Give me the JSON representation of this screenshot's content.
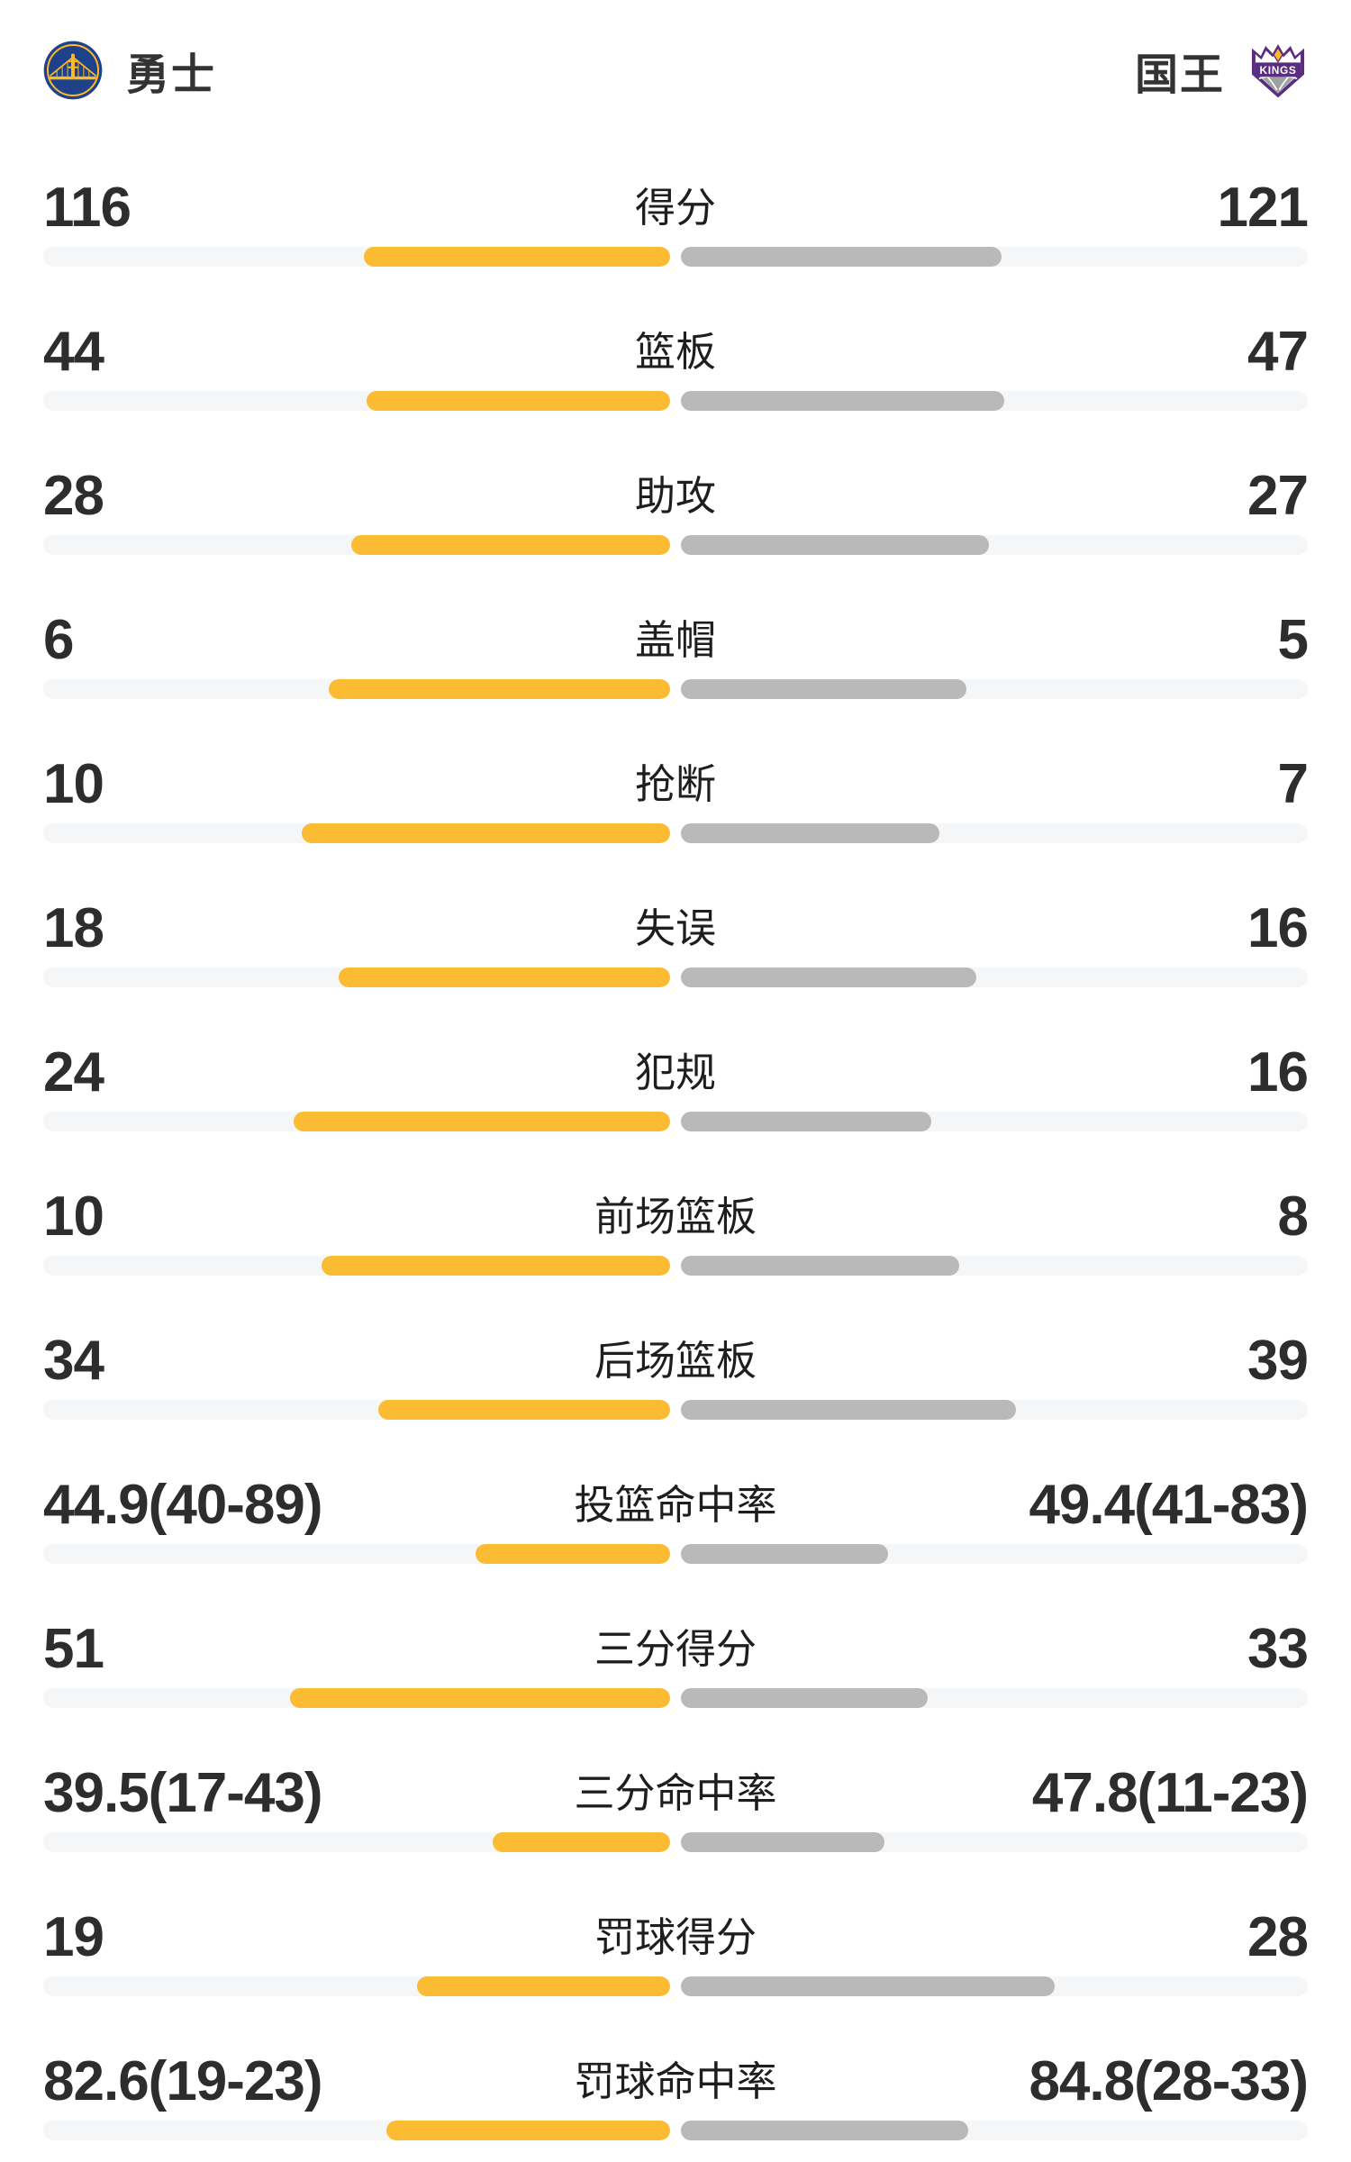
{
  "header": {
    "home": {
      "name": "勇士",
      "logo_icon": "warriors-logo"
    },
    "away": {
      "name": "国王",
      "logo_icon": "kings-logo"
    }
  },
  "colors": {
    "home_bar": "#FBBC34",
    "away_bar": "#B9B9B9",
    "track": "#F5F6F8",
    "number_text": "#2D2D2D",
    "label_text": "#1E1E1E",
    "warriors_blue": "#1D428A",
    "warriors_gold": "#FDB927",
    "kings_purple": "#5A2D81",
    "kings_silver": "#9EA2A2"
  },
  "rows": [
    {
      "label": "得分",
      "home": "116",
      "away": "121",
      "home_bar_pct": 48.9,
      "away_bar_pct": 51.1
    },
    {
      "label": "篮板",
      "home": "44",
      "away": "47",
      "home_bar_pct": 48.4,
      "away_bar_pct": 51.6
    },
    {
      "label": "助攻",
      "home": "28",
      "away": "27",
      "home_bar_pct": 50.9,
      "away_bar_pct": 49.1
    },
    {
      "label": "盖帽",
      "home": "6",
      "away": "5",
      "home_bar_pct": 54.5,
      "away_bar_pct": 45.5
    },
    {
      "label": "抢断",
      "home": "10",
      "away": "7",
      "home_bar_pct": 58.8,
      "away_bar_pct": 41.2
    },
    {
      "label": "失误",
      "home": "18",
      "away": "16",
      "home_bar_pct": 52.9,
      "away_bar_pct": 47.1
    },
    {
      "label": "犯规",
      "home": "24",
      "away": "16",
      "home_bar_pct": 60.0,
      "away_bar_pct": 40.0
    },
    {
      "label": "前场篮板",
      "home": "10",
      "away": "8",
      "home_bar_pct": 55.6,
      "away_bar_pct": 44.4
    },
    {
      "label": "后场篮板",
      "home": "34",
      "away": "39",
      "home_bar_pct": 46.6,
      "away_bar_pct": 53.4
    },
    {
      "label": "投篮命中率",
      "home": "44.9(40-89)",
      "away": "49.4(41-83)",
      "home_bar_pct": 31.0,
      "away_bar_pct": 33.1
    },
    {
      "label": "三分得分",
      "home": "51",
      "away": "33",
      "home_bar_pct": 60.7,
      "away_bar_pct": 39.3
    },
    {
      "label": "三分命中率",
      "home": "39.5(17-43)",
      "away": "47.8(11-23)",
      "home_bar_pct": 28.3,
      "away_bar_pct": 32.4
    },
    {
      "label": "罚球得分",
      "home": "19",
      "away": "28",
      "home_bar_pct": 40.4,
      "away_bar_pct": 59.6
    },
    {
      "label": "罚球命中率",
      "home": "82.6(19-23)",
      "away": "84.8(28-33)",
      "home_bar_pct": 45.2,
      "away_bar_pct": 45.9
    }
  ],
  "chart_data": {
    "type": "bar",
    "subtype": "paired-horizontal-comparison",
    "orientation": "horizontal",
    "legend_position": "top",
    "grid": false,
    "categories": [
      "得分",
      "篮板",
      "助攻",
      "盖帽",
      "抢断",
      "失误",
      "犯规",
      "前场篮板",
      "后场篮板",
      "投篮命中率",
      "三分得分",
      "三分命中率",
      "罚球得分",
      "罚球命中率"
    ],
    "series": [
      {
        "name": "勇士",
        "color": "#FBBC34",
        "values": [
          116,
          44,
          28,
          6,
          10,
          18,
          24,
          10,
          34,
          44.9,
          51,
          39.5,
          19,
          82.6
        ],
        "display": [
          "116",
          "44",
          "28",
          "6",
          "10",
          "18",
          "24",
          "10",
          "34",
          "44.9(40-89)",
          "51",
          "39.5(17-43)",
          "19",
          "82.6(19-23)"
        ]
      },
      {
        "name": "国王",
        "color": "#B9B9B9",
        "values": [
          121,
          47,
          27,
          5,
          7,
          16,
          16,
          8,
          39,
          49.4,
          33,
          47.8,
          28,
          84.8
        ],
        "display": [
          "121",
          "47",
          "27",
          "5",
          "7",
          "16",
          "16",
          "8",
          "39",
          "49.4(41-83)",
          "33",
          "47.8(11-23)",
          "28",
          "84.8(28-33)"
        ]
      }
    ]
  }
}
